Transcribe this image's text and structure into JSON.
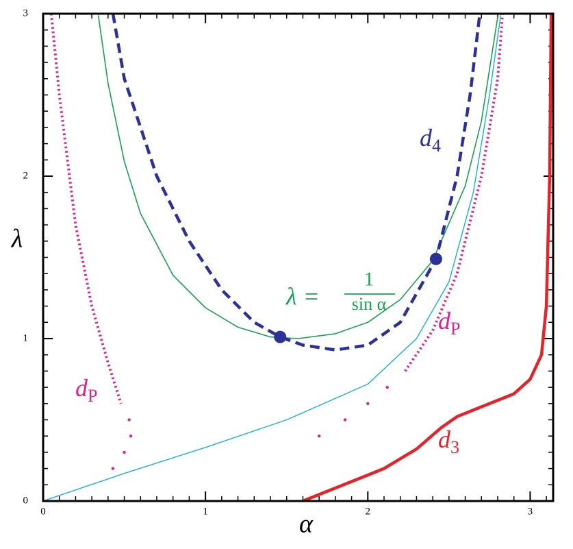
{
  "chart_data": {
    "type": "line",
    "x_label": "α",
    "y_label": "λ",
    "xlim": [
      0,
      3.1416
    ],
    "ylim": [
      0,
      3
    ],
    "xticks": [
      0,
      1,
      2,
      3
    ],
    "yticks": [
      0,
      1,
      2,
      3
    ],
    "minor_tick_step": 0.1,
    "series": [
      {
        "name": "λ = 1/sin α",
        "color": "#17a04f",
        "style": "solid",
        "width": 1.6,
        "x": [
          0.34,
          0.4,
          0.5,
          0.6,
          0.8,
          1.0,
          1.2,
          1.4,
          1.5708,
          1.8,
          2.0,
          2.2,
          2.4,
          2.6,
          2.7,
          2.8
        ],
        "values": [
          2.99,
          2.57,
          2.09,
          1.77,
          1.39,
          1.19,
          1.07,
          1.01,
          1,
          1.03,
          1.1,
          1.24,
          1.48,
          1.94,
          2.34,
          2.98
        ]
      },
      {
        "name": "cyan",
        "color": "#16ade3",
        "style": "solid",
        "width": 1.4,
        "x": [
          0,
          0.5,
          1,
          1.5,
          2,
          2.3,
          2.5,
          2.65,
          2.75,
          2.82
        ],
        "values": [
          0,
          0.17,
          0.33,
          0.5,
          0.72,
          1.0,
          1.35,
          1.9,
          2.5,
          3
        ]
      },
      {
        "name": "d4",
        "color": "#2b3196",
        "style": "dashed",
        "width": 4.5,
        "x": [
          0.43,
          0.5,
          0.7,
          0.9,
          1.1,
          1.3,
          1.46,
          1.6,
          1.8,
          2.0,
          2.2,
          2.42,
          2.55,
          2.63,
          2.69
        ],
        "values": [
          3,
          2.6,
          2.0,
          1.6,
          1.3,
          1.1,
          1.01,
          0.96,
          0.93,
          0.96,
          1.1,
          1.49,
          2.0,
          2.5,
          3
        ]
      },
      {
        "name": "dP left",
        "color": "#e0208f",
        "style": "dotted",
        "width": 4,
        "x": [
          0.05,
          0.1,
          0.2,
          0.3,
          0.4,
          0.48
        ],
        "values": [
          3,
          2.5,
          1.7,
          1.2,
          0.85,
          0.6
        ]
      },
      {
        "name": "dP right",
        "color": "#e0208f",
        "style": "dotted",
        "width": 4,
        "x": [
          2.23,
          2.4,
          2.55,
          2.7,
          2.8,
          2.83
        ],
        "values": [
          0.8,
          1.05,
          1.4,
          2.0,
          2.6,
          3
        ]
      },
      {
        "name": "d3",
        "color": "#e3242b",
        "style": "solid",
        "width": 4.5,
        "x": [
          1.6,
          1.9,
          2.1,
          2.3,
          2.45,
          2.55,
          2.7,
          2.9,
          3.0,
          3.07,
          3.1,
          3.12,
          3.13
        ],
        "values": [
          0,
          0.12,
          0.2,
          0.32,
          0.45,
          0.52,
          0.58,
          0.66,
          0.75,
          0.9,
          1.2,
          2,
          3
        ]
      }
    ],
    "points": [
      {
        "name": "dP dots",
        "color": "#e0208f",
        "radius": 2.2,
        "x": [
          0.43,
          0.5,
          0.54,
          0.53,
          1.7,
          1.86,
          2.0,
          2.12
        ],
        "values": [
          0.2,
          0.3,
          0.4,
          0.5,
          0.4,
          0.5,
          0.6,
          0.7
        ]
      },
      {
        "name": "d4 markers",
        "color": "#2b3196",
        "radius": 9,
        "x": [
          1.46,
          2.42
        ],
        "values": [
          1.01,
          1.49
        ]
      }
    ],
    "annotations": [
      {
        "base": "d",
        "sub": "4",
        "color": "#2b3196"
      },
      {
        "lhs": "λ =",
        "num": "1",
        "den": "sin α",
        "color": "#17a04f"
      },
      {
        "base": "d",
        "sub": "P",
        "color": "#e0208f"
      },
      {
        "base": "d",
        "sub": "P",
        "color": "#e0208f"
      },
      {
        "base": "d",
        "sub": "3",
        "color": "#e3242b"
      }
    ]
  }
}
